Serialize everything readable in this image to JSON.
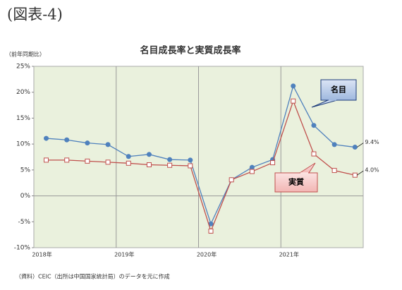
{
  "header": "(図表-4)",
  "chart_data": {
    "type": "line",
    "title": "名目成長率と実質成長率",
    "y_label": "（前年同期比）",
    "source": "（資料）CEIC（出所は中国国家統計局）のデータを元に作成",
    "categories": [
      "2018年",
      null,
      null,
      null,
      "2019年",
      null,
      null,
      null,
      "2020年",
      null,
      null,
      null,
      "2021年",
      null,
      null,
      null
    ],
    "series": [
      {
        "name": "名目",
        "color": "#4f81bd",
        "marker": "circle",
        "values": [
          11.1,
          10.8,
          10.2,
          9.9,
          7.6,
          8.0,
          7.0,
          6.9,
          -5.4,
          3.1,
          5.5,
          7.0,
          21.2,
          13.6,
          9.9,
          9.4
        ],
        "value_labels": [
          null,
          null,
          null,
          null,
          null,
          null,
          null,
          null,
          null,
          null,
          null,
          null,
          null,
          null,
          null,
          "9.4%"
        ]
      },
      {
        "name": "実質",
        "color": "#c0504d",
        "marker": "square",
        "values": [
          6.9,
          6.9,
          6.7,
          6.5,
          6.3,
          6.0,
          5.9,
          5.8,
          -6.8,
          3.1,
          4.7,
          6.4,
          18.3,
          8.1,
          4.9,
          4.0
        ],
        "value_labels": [
          null,
          null,
          null,
          null,
          null,
          null,
          null,
          null,
          null,
          null,
          null,
          null,
          null,
          null,
          null,
          "4.0%"
        ]
      }
    ],
    "ylim": [
      -10,
      25
    ],
    "yticks": [
      {
        "value": -10,
        "label": "-10%"
      },
      {
        "value": -5,
        "label": "-5%"
      },
      {
        "value": 0,
        "label": "0%"
      },
      {
        "value": 5,
        "label": "5%"
      },
      {
        "value": 10,
        "label": "10%"
      },
      {
        "value": 15,
        "label": "15%"
      },
      {
        "value": 20,
        "label": "20%"
      },
      {
        "value": 25,
        "label": "25%"
      }
    ]
  }
}
